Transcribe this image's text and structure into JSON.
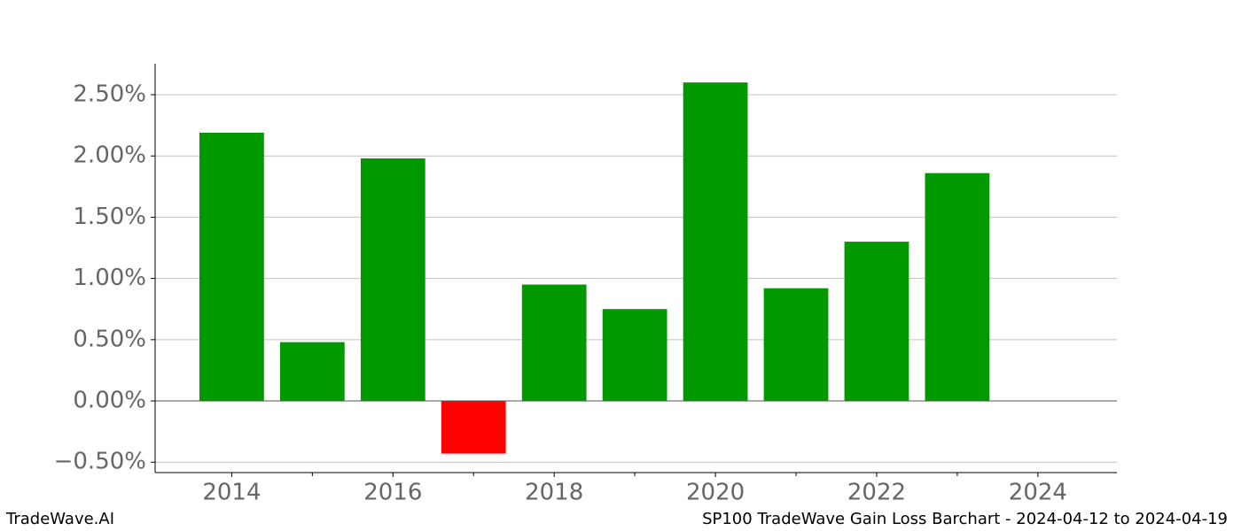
{
  "chart_data": {
    "type": "bar",
    "x": [
      2014,
      2015,
      2016,
      2017,
      2018,
      2019,
      2020,
      2021,
      2022,
      2023
    ],
    "values": [
      2.19,
      0.48,
      1.98,
      -0.43,
      0.95,
      0.75,
      2.6,
      0.92,
      1.3,
      1.86
    ],
    "positive_color": "#009900",
    "negative_color": "#ff0000",
    "xlim": [
      2013.05,
      2024.98
    ],
    "xticks": [
      2014,
      2016,
      2018,
      2020,
      2022,
      2024
    ],
    "xminor_ticks": [
      2015,
      2017,
      2019,
      2021,
      2023
    ],
    "ylim": [
      -0.585,
      2.753
    ],
    "yticks": [
      {
        "value": -0.5,
        "label": "−0.50%"
      },
      {
        "value": 0,
        "label": "0.00%"
      },
      {
        "value": 0.5,
        "label": "0.50%"
      },
      {
        "value": 1,
        "label": "1.00%"
      },
      {
        "value": 1.5,
        "label": "1.50%"
      },
      {
        "value": 2,
        "label": "2.00%"
      },
      {
        "value": 2.5,
        "label": "2.50%"
      }
    ],
    "grid": true,
    "footer_left": "TradeWave.AI",
    "footer_right": "SP100 TradeWave Gain Loss Barchart - 2024-04-12 to 2024-04-19"
  }
}
